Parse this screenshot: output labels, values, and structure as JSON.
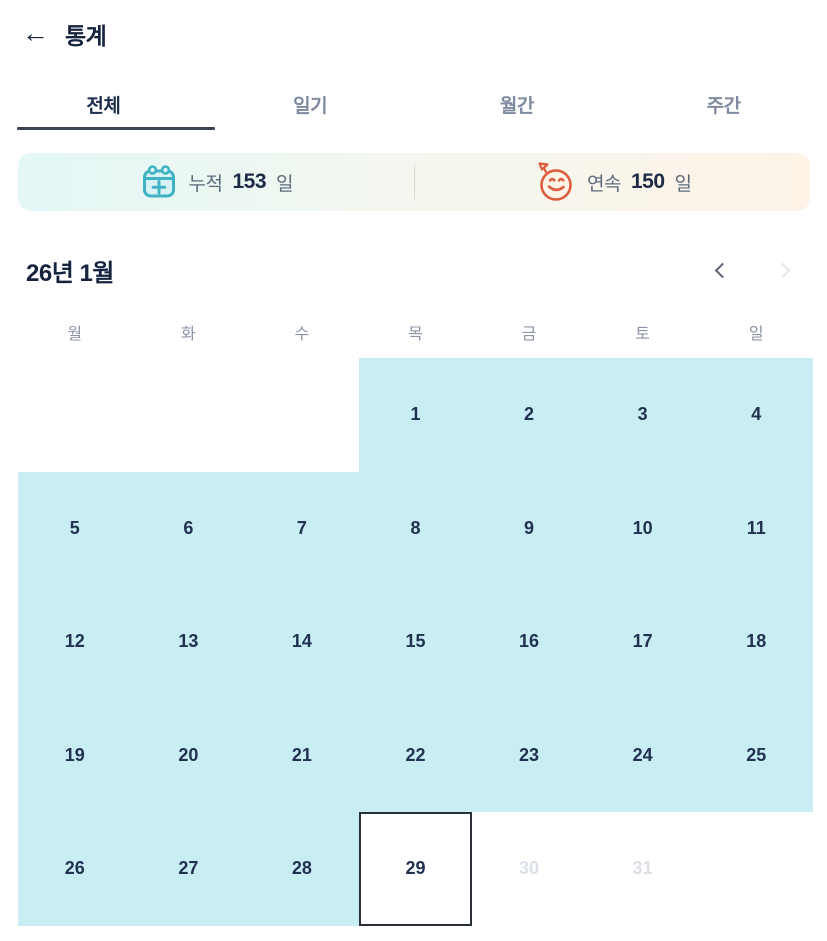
{
  "header": {
    "back_icon": "arrow-left",
    "title": "통계"
  },
  "tabs": [
    {
      "label": "전체",
      "active": true
    },
    {
      "label": "일기",
      "active": false
    },
    {
      "label": "월간",
      "active": false
    },
    {
      "label": "주간",
      "active": false
    }
  ],
  "summary": {
    "cumulative": {
      "icon": "calendar-plus-icon",
      "label": "누적",
      "value": "153",
      "unit": "일"
    },
    "streak": {
      "icon": "smiley-flag-icon",
      "label": "연속",
      "value": "150",
      "unit": "일"
    }
  },
  "calendar": {
    "month_title": "26년 1월",
    "weekdays": [
      "월",
      "화",
      "수",
      "목",
      "금",
      "토",
      "일"
    ],
    "cells": [
      {
        "day": "",
        "state": "empty"
      },
      {
        "day": "",
        "state": "empty"
      },
      {
        "day": "",
        "state": "empty"
      },
      {
        "day": "1",
        "state": "active"
      },
      {
        "day": "2",
        "state": "active"
      },
      {
        "day": "3",
        "state": "active"
      },
      {
        "day": "4",
        "state": "active"
      },
      {
        "day": "5",
        "state": "active"
      },
      {
        "day": "6",
        "state": "active"
      },
      {
        "day": "7",
        "state": "active"
      },
      {
        "day": "8",
        "state": "active"
      },
      {
        "day": "9",
        "state": "active"
      },
      {
        "day": "10",
        "state": "active"
      },
      {
        "day": "11",
        "state": "active"
      },
      {
        "day": "12",
        "state": "active"
      },
      {
        "day": "13",
        "state": "active"
      },
      {
        "day": "14",
        "state": "active"
      },
      {
        "day": "15",
        "state": "active"
      },
      {
        "day": "16",
        "state": "active"
      },
      {
        "day": "17",
        "state": "active"
      },
      {
        "day": "18",
        "state": "active"
      },
      {
        "day": "19",
        "state": "active"
      },
      {
        "day": "20",
        "state": "active"
      },
      {
        "day": "21",
        "state": "active"
      },
      {
        "day": "22",
        "state": "active"
      },
      {
        "day": "23",
        "state": "active"
      },
      {
        "day": "24",
        "state": "active"
      },
      {
        "day": "25",
        "state": "active"
      },
      {
        "day": "26",
        "state": "active"
      },
      {
        "day": "27",
        "state": "active"
      },
      {
        "day": "28",
        "state": "active"
      },
      {
        "day": "29",
        "state": "today"
      },
      {
        "day": "30",
        "state": "future"
      },
      {
        "day": "31",
        "state": "future"
      },
      {
        "day": "",
        "state": "empty"
      }
    ]
  },
  "colors": {
    "highlight_cyan": "#c8eef4",
    "banner_gradient_start": "#e3f7f6",
    "banner_gradient_end": "#fdf3e7",
    "calendar_icon_teal": "#3fb3c3",
    "smiley_icon_red": "#dd5c3c",
    "title_navy": "#16233f",
    "inactive_tab_gray": "#7d8aa0",
    "future_day_gray": "#dbe0e7"
  }
}
